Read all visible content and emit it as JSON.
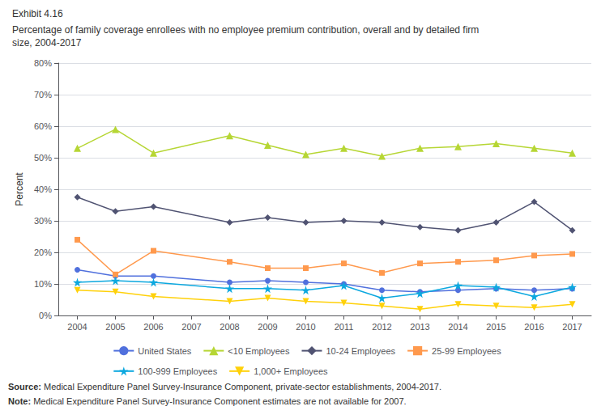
{
  "chart_data": {
    "type": "line",
    "title": "Exhibit 4.16",
    "subtitle": "Percentage of family coverage enrollees with no employee premium contribution, overall and by detailed firm\nsize, 2004-2017",
    "ylabel": "Percent",
    "x": [
      2004,
      2005,
      2006,
      2007,
      2008,
      2009,
      2010,
      2011,
      2012,
      2013,
      2014,
      2015,
      2016,
      2017
    ],
    "series": [
      {
        "name": "United States",
        "marker": "circle",
        "values": [
          14.5,
          12.5,
          12.5,
          null,
          10.5,
          11.0,
          10.5,
          10.0,
          8.0,
          7.5,
          8.0,
          8.5,
          8.0,
          8.5
        ]
      },
      {
        "name": "<10 Employees",
        "marker": "triangle",
        "values": [
          53.0,
          59.0,
          51.5,
          null,
          57.0,
          54.0,
          51.0,
          53.0,
          50.5,
          53.0,
          53.5,
          54.5,
          53.0,
          51.5
        ]
      },
      {
        "name": "10-24 Employees",
        "marker": "diamond",
        "values": [
          37.5,
          33.0,
          34.5,
          null,
          29.5,
          31.0,
          29.5,
          30.0,
          29.5,
          28.0,
          27.0,
          29.5,
          36.0,
          27.0
        ]
      },
      {
        "name": "25-99 Employees",
        "marker": "square",
        "values": [
          24.0,
          13.0,
          20.5,
          null,
          17.0,
          15.0,
          15.0,
          16.5,
          13.5,
          16.5,
          17.0,
          17.5,
          19.0,
          19.5
        ]
      },
      {
        "name": "100-999 Employees",
        "marker": "star",
        "values": [
          10.5,
          11.0,
          10.5,
          null,
          8.5,
          8.5,
          8.0,
          9.5,
          5.5,
          7.0,
          9.5,
          9.0,
          6.0,
          9.0
        ]
      },
      {
        "name": "1,000+ Employees",
        "marker": "triangle_down",
        "values": [
          8.0,
          7.5,
          6.0,
          null,
          4.5,
          5.5,
          4.5,
          4.0,
          3.0,
          2.0,
          3.5,
          3.0,
          2.5,
          3.5
        ]
      }
    ],
    "xlim": [
      2003.5,
      2017.5
    ],
    "xticks": [
      2004,
      2005,
      2006,
      2007,
      2008,
      2009,
      2010,
      2011,
      2012,
      2013,
      2014,
      2015,
      2016,
      2017
    ],
    "ylim": [
      0,
      80
    ],
    "yticks": [
      {
        "value": 0,
        "label": "0%"
      },
      {
        "value": 10,
        "label": "10%"
      },
      {
        "value": 20,
        "label": "20%"
      },
      {
        "value": 30,
        "label": "30%"
      },
      {
        "value": 40,
        "label": "40%"
      },
      {
        "value": 50,
        "label": "50%"
      },
      {
        "value": 60,
        "label": "60%"
      },
      {
        "value": 70,
        "label": "70%"
      },
      {
        "value": 80,
        "label": "80%"
      }
    ],
    "grid": true,
    "legend": "bottom",
    "annotations": [
      "Source: Medical Expenditure Panel Survey-Insurance Component, private-sector establishments, 2004-2017.",
      "Note: Medical Expenditure Panel Survey-Insurance Component estimates are not available for 2007."
    ]
  }
}
